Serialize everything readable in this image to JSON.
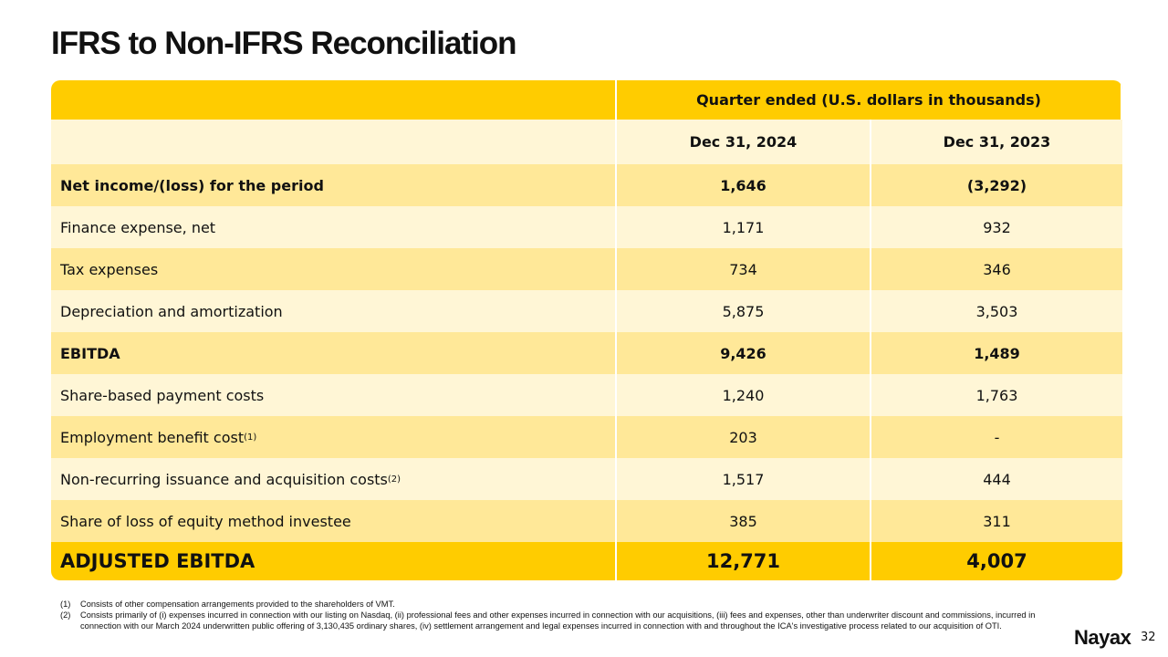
{
  "title": "IFRS to Non-IFRS Reconciliation",
  "table": {
    "header": "Quarter ended (U.S. dollars in thousands)",
    "columns": [
      "Dec 31, 2024",
      "Dec 31, 2023"
    ],
    "rows": [
      {
        "label": "Net income/(loss) for the period",
        "sup": "",
        "v1": "1,646",
        "v2": "(3,292)"
      },
      {
        "label": "Finance expense, net",
        "sup": "",
        "v1": "1,171",
        "v2": "932"
      },
      {
        "label": "Tax expenses",
        "sup": "",
        "v1": "734",
        "v2": "346"
      },
      {
        "label": "Depreciation and amortization",
        "sup": "",
        "v1": "5,875",
        "v2": "3,503"
      },
      {
        "label": "EBITDA",
        "sup": "",
        "v1": "9,426",
        "v2": "1,489"
      },
      {
        "label": "Share-based payment costs",
        "sup": "",
        "v1": "1,240",
        "v2": "1,763"
      },
      {
        "label": "Employment benefit cost",
        "sup": "(1)",
        "v1": "203",
        "v2": "-"
      },
      {
        "label": "Non-recurring issuance and acquisition costs",
        "sup": "(2)",
        "v1": "1,517",
        "v2": "444"
      },
      {
        "label": "Share of loss of equity method investee",
        "sup": "",
        "v1": "385",
        "v2": "311"
      }
    ],
    "total": {
      "label": "ADJUSTED EBITDA",
      "v1": "12,771",
      "v2": "4,007"
    }
  },
  "footnotes": [
    {
      "num": "(1)",
      "text": "Consists of other compensation arrangements provided to the shareholders of VMT."
    },
    {
      "num": "(2)",
      "text": "Consists primarily of (i) expenses incurred in connection with our listing on Nasdaq, (ii) professional fees and other expenses incurred in connection with our acquisitions, (iii) fees and expenses, other than underwriter discount and commissions, incurred in connection with our March 2024 underwritten public offering of 3,130,435 ordinary shares, (iv) settlement arrangement and legal expenses incurred in connection with and throughout the ICA's investigative process related to our acquisition of OTI."
    }
  ],
  "logo": "Nayax",
  "page_number": "32",
  "colors": {
    "accent": "#FFCC00",
    "row_light": "#FFF6D6",
    "row_dark": "#FFE898"
  }
}
